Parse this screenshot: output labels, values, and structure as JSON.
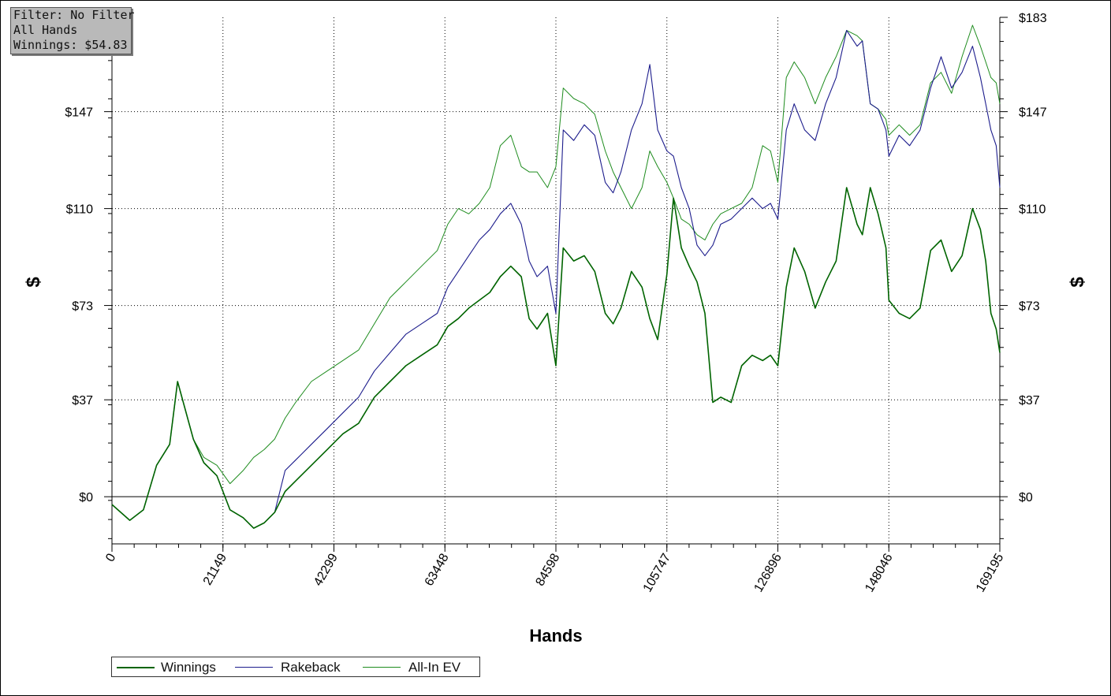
{
  "info_box": {
    "filter": "Filter: No Filter",
    "hands": "All Hands",
    "winnings": "Winnings: $54.83"
  },
  "legend": {
    "items": [
      {
        "label": "Winnings",
        "color": "#006400"
      },
      {
        "label": "Rakeback",
        "color": "#1c1c8c"
      },
      {
        "label": "All-In EV",
        "color": "#1e8c1e"
      }
    ]
  },
  "chart_data": {
    "type": "line",
    "xlabel": "Hands",
    "ylabel": "$",
    "xlim": [
      0,
      169195
    ],
    "ylim": [
      -18,
      183
    ],
    "x_ticks": [
      "0",
      "21149",
      "42299",
      "63448",
      "84598",
      "105747",
      "126896",
      "148046",
      "169195"
    ],
    "y_ticks": [
      "$0",
      "$37",
      "$73",
      "$110",
      "$147",
      "$183"
    ],
    "y_tick_values": [
      0,
      37,
      73,
      110,
      147,
      183
    ],
    "grid": true,
    "legend_position": "bottom-left",
    "series": [
      {
        "name": "Winnings",
        "color": "#006400",
        "x": [
          0,
          3400,
          6000,
          8500,
          11000,
          12500,
          14000,
          15500,
          17500,
          20000,
          22500,
          25000,
          27000,
          29000,
          31000,
          33000,
          35000,
          38000,
          41000,
          44000,
          47000,
          50000,
          53000,
          56000,
          59000,
          62000,
          64000,
          66000,
          68000,
          70000,
          72000,
          74000,
          76000,
          78000,
          79500,
          81000,
          83000,
          84598,
          86000,
          88000,
          90000,
          92000,
          94000,
          95500,
          97000,
          99000,
          101000,
          102500,
          104000,
          105747,
          107000,
          108500,
          110000,
          111500,
          113000,
          114500,
          116000,
          118000,
          120000,
          122000,
          124000,
          125500,
          126896,
          128500,
          130000,
          132000,
          134000,
          136000,
          138000,
          140000,
          142000,
          143000,
          144500,
          146000,
          147500,
          148046,
          150000,
          152000,
          154000,
          156000,
          158000,
          160000,
          162000,
          164000,
          165500,
          166500,
          167500,
          168500,
          169195
        ],
        "y": [
          -3,
          -9,
          -5,
          12,
          20,
          44,
          33,
          22,
          13,
          8,
          -5,
          -8,
          -12,
          -10,
          -6,
          2,
          6,
          12,
          18,
          24,
          28,
          38,
          44,
          50,
          54,
          58,
          65,
          68,
          72,
          75,
          78,
          84,
          88,
          84,
          68,
          64,
          70,
          50,
          95,
          90,
          92,
          86,
          70,
          66,
          72,
          86,
          80,
          68,
          60,
          85,
          114,
          95,
          88,
          82,
          70,
          36,
          38,
          36,
          50,
          54,
          52,
          54,
          50,
          80,
          95,
          86,
          72,
          82,
          90,
          118,
          104,
          100,
          118,
          108,
          95,
          75,
          70,
          68,
          72,
          94,
          98,
          86,
          92,
          110,
          102,
          90,
          70,
          64,
          55
        ],
        "final_value": 54.83
      },
      {
        "name": "Rakeback",
        "color": "#1c1c8c",
        "x": [
          0,
          3400,
          6000,
          8500,
          11000,
          12500,
          14000,
          15500,
          17500,
          20000,
          22500,
          25000,
          27000,
          29000,
          31000,
          33000,
          35000,
          38000,
          41000,
          44000,
          47000,
          50000,
          53000,
          56000,
          59000,
          62000,
          64000,
          66000,
          68000,
          70000,
          72000,
          74000,
          76000,
          78000,
          79500,
          81000,
          83000,
          84598,
          86000,
          88000,
          90000,
          92000,
          94000,
          95500,
          97000,
          99000,
          101000,
          102500,
          104000,
          105747,
          107000,
          108500,
          110000,
          111500,
          113000,
          114500,
          116000,
          118000,
          120000,
          122000,
          124000,
          125500,
          126896,
          128500,
          130000,
          132000,
          134000,
          136000,
          138000,
          140000,
          142000,
          143000,
          144500,
          146000,
          147500,
          148046,
          150000,
          152000,
          154000,
          156000,
          158000,
          160000,
          162000,
          164000,
          165500,
          166500,
          167500,
          168500,
          169195
        ],
        "y": [
          -3,
          -9,
          -5,
          12,
          20,
          44,
          33,
          22,
          13,
          8,
          -5,
          -8,
          -12,
          -10,
          -6,
          10,
          14,
          20,
          26,
          32,
          38,
          48,
          55,
          62,
          66,
          70,
          80,
          86,
          92,
          98,
          102,
          108,
          112,
          104,
          90,
          84,
          88,
          70,
          140,
          136,
          142,
          138,
          120,
          116,
          124,
          140,
          150,
          165,
          140,
          132,
          130,
          118,
          110,
          96,
          92,
          96,
          104,
          106,
          110,
          114,
          110,
          112,
          106,
          140,
          150,
          140,
          136,
          150,
          160,
          178,
          172,
          174,
          150,
          148,
          140,
          130,
          138,
          134,
          140,
          156,
          168,
          156,
          162,
          172,
          160,
          150,
          140,
          134,
          118
        ]
      },
      {
        "name": "All-In EV",
        "color": "#1e8c1e",
        "x": [
          0,
          3400,
          6000,
          8500,
          11000,
          12500,
          14000,
          15500,
          17500,
          20000,
          22500,
          25000,
          27000,
          29000,
          31000,
          33000,
          35000,
          38000,
          41000,
          44000,
          47000,
          50000,
          53000,
          56000,
          59000,
          62000,
          64000,
          66000,
          68000,
          70000,
          72000,
          74000,
          76000,
          78000,
          79500,
          81000,
          83000,
          84598,
          86000,
          88000,
          90000,
          92000,
          94000,
          95500,
          97000,
          99000,
          101000,
          102500,
          104000,
          105747,
          107000,
          108500,
          110000,
          111500,
          113000,
          114500,
          116000,
          118000,
          120000,
          122000,
          124000,
          125500,
          126896,
          128500,
          130000,
          132000,
          134000,
          136000,
          138000,
          140000,
          142000,
          143000,
          144500,
          146000,
          147500,
          148046,
          150000,
          152000,
          154000,
          156000,
          158000,
          160000,
          162000,
          164000,
          165500,
          166500,
          167500,
          168500,
          169195
        ],
        "y": [
          -3,
          -9,
          -5,
          12,
          20,
          44,
          33,
          22,
          15,
          12,
          5,
          10,
          15,
          18,
          22,
          30,
          36,
          44,
          48,
          52,
          56,
          66,
          76,
          82,
          88,
          94,
          104,
          110,
          108,
          112,
          118,
          134,
          138,
          126,
          124,
          124,
          118,
          126,
          156,
          152,
          150,
          146,
          132,
          124,
          118,
          110,
          118,
          132,
          126,
          120,
          114,
          106,
          104,
          100,
          98,
          104,
          108,
          110,
          112,
          118,
          134,
          132,
          120,
          160,
          166,
          160,
          150,
          160,
          168,
          178,
          176,
          174,
          150,
          148,
          144,
          138,
          142,
          138,
          142,
          158,
          162,
          154,
          168,
          180,
          172,
          166,
          160,
          158,
          150
        ]
      }
    ]
  }
}
